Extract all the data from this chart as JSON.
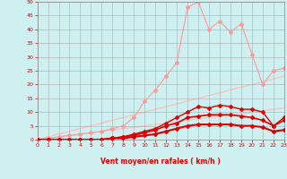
{
  "x": [
    0,
    1,
    2,
    3,
    4,
    5,
    6,
    7,
    8,
    9,
    10,
    11,
    12,
    13,
    14,
    15,
    16,
    17,
    18,
    19,
    20,
    21,
    22,
    23
  ],
  "line_diag1": [
    0,
    1,
    2,
    3,
    4,
    5,
    6,
    7,
    8,
    9,
    10,
    11,
    12,
    13,
    14,
    15,
    16,
    17,
    18,
    19,
    20,
    21,
    22,
    23
  ],
  "line_diag2": [
    0,
    0.5,
    1,
    1.5,
    2,
    2.5,
    3,
    3.5,
    4,
    4.5,
    5,
    5.5,
    6,
    6.5,
    7,
    7.5,
    8,
    8.5,
    9,
    9.5,
    10,
    10.5,
    11,
    11.5
  ],
  "line_light_jagged": [
    0,
    0.5,
    1,
    1.5,
    2,
    2.5,
    3,
    4,
    5,
    8,
    14,
    18,
    23,
    28,
    48,
    50,
    40,
    43,
    39,
    42,
    31,
    20,
    25,
    26
  ],
  "line_dark3": [
    0,
    0,
    0,
    0,
    0,
    0,
    0,
    0.5,
    1,
    2,
    3,
    4,
    6,
    8,
    10,
    12,
    11.5,
    12.5,
    12,
    11,
    11,
    10,
    5,
    8
  ],
  "line_dark2": [
    0,
    0,
    0,
    0,
    0,
    0,
    0,
    0.5,
    1,
    1.5,
    2.5,
    3.5,
    5,
    6,
    8,
    8.5,
    9,
    9,
    9,
    8.5,
    8,
    7,
    5,
    7
  ],
  "line_dark1": [
    0,
    0,
    0,
    0,
    0,
    0,
    0,
    0.5,
    0.5,
    1,
    1.5,
    2,
    3,
    4,
    5,
    5.5,
    5.5,
    5.5,
    5.5,
    5,
    5,
    4.5,
    3,
    3.5
  ],
  "xlabel": "Vent moyen/en rafales ( km/h )",
  "ylim": [
    0,
    50
  ],
  "xlim": [
    0,
    23
  ],
  "yticks": [
    0,
    5,
    10,
    15,
    20,
    25,
    30,
    35,
    40,
    45,
    50
  ],
  "xticks": [
    0,
    1,
    2,
    3,
    4,
    5,
    6,
    7,
    8,
    9,
    10,
    11,
    12,
    13,
    14,
    15,
    16,
    17,
    18,
    19,
    20,
    21,
    22,
    23
  ],
  "bg_color": "#cff0f0",
  "grid_color": "#aaaaaa",
  "color_dark_red": "#dd0000",
  "color_light_red": "#ff9999",
  "color_diag": "#ffbbbb"
}
